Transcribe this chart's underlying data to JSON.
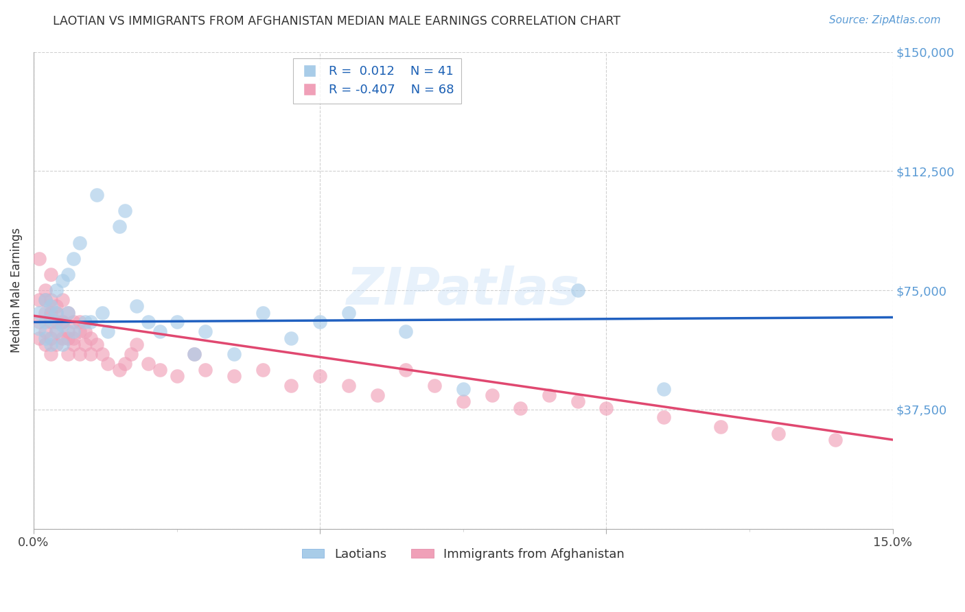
{
  "title": "LAOTIAN VS IMMIGRANTS FROM AFGHANISTAN MEDIAN MALE EARNINGS CORRELATION CHART",
  "source": "Source: ZipAtlas.com",
  "ylabel": "Median Male Earnings",
  "yticks": [
    0,
    37500,
    75000,
    112500,
    150000
  ],
  "ytick_labels": [
    "",
    "$37,500",
    "$75,000",
    "$112,500",
    "$150,000"
  ],
  "xlim": [
    0.0,
    0.15
  ],
  "ylim": [
    0,
    150000
  ],
  "watermark": "ZIPatlas",
  "blue_color": "#a8cce8",
  "pink_color": "#f0a0b8",
  "trend_blue": "#2060c0",
  "trend_pink": "#e04870",
  "label1": "Laotians",
  "label2": "Immigrants from Afghanistan",
  "laotian_x": [
    0.001,
    0.001,
    0.002,
    0.002,
    0.002,
    0.003,
    0.003,
    0.003,
    0.004,
    0.004,
    0.004,
    0.005,
    0.005,
    0.005,
    0.006,
    0.006,
    0.007,
    0.007,
    0.008,
    0.009,
    0.01,
    0.011,
    0.012,
    0.013,
    0.015,
    0.016,
    0.018,
    0.02,
    0.022,
    0.025,
    0.028,
    0.03,
    0.035,
    0.04,
    0.045,
    0.05,
    0.055,
    0.065,
    0.075,
    0.095,
    0.11
  ],
  "laotian_y": [
    63000,
    68000,
    65000,
    60000,
    72000,
    58000,
    66000,
    70000,
    62000,
    75000,
    68000,
    64000,
    78000,
    58000,
    68000,
    80000,
    85000,
    62000,
    90000,
    65000,
    65000,
    105000,
    68000,
    62000,
    95000,
    100000,
    70000,
    65000,
    62000,
    65000,
    55000,
    62000,
    55000,
    68000,
    60000,
    65000,
    68000,
    62000,
    44000,
    75000,
    44000
  ],
  "afghan_x": [
    0.001,
    0.001,
    0.001,
    0.001,
    0.002,
    0.002,
    0.002,
    0.002,
    0.002,
    0.003,
    0.003,
    0.003,
    0.003,
    0.003,
    0.003,
    0.004,
    0.004,
    0.004,
    0.004,
    0.004,
    0.005,
    0.005,
    0.005,
    0.005,
    0.006,
    0.006,
    0.006,
    0.006,
    0.007,
    0.007,
    0.007,
    0.008,
    0.008,
    0.008,
    0.009,
    0.009,
    0.01,
    0.01,
    0.011,
    0.012,
    0.013,
    0.015,
    0.016,
    0.017,
    0.018,
    0.02,
    0.022,
    0.025,
    0.028,
    0.03,
    0.035,
    0.04,
    0.045,
    0.05,
    0.055,
    0.06,
    0.065,
    0.07,
    0.075,
    0.08,
    0.085,
    0.09,
    0.095,
    0.1,
    0.11,
    0.12,
    0.13,
    0.14
  ],
  "afghan_y": [
    85000,
    72000,
    65000,
    60000,
    75000,
    68000,
    62000,
    58000,
    72000,
    80000,
    68000,
    65000,
    60000,
    72000,
    55000,
    70000,
    65000,
    62000,
    68000,
    58000,
    65000,
    72000,
    60000,
    65000,
    62000,
    68000,
    60000,
    55000,
    65000,
    60000,
    58000,
    62000,
    55000,
    65000,
    58000,
    62000,
    55000,
    60000,
    58000,
    55000,
    52000,
    50000,
    52000,
    55000,
    58000,
    52000,
    50000,
    48000,
    55000,
    50000,
    48000,
    50000,
    45000,
    48000,
    45000,
    42000,
    50000,
    45000,
    40000,
    42000,
    38000,
    42000,
    40000,
    38000,
    35000,
    32000,
    30000,
    28000
  ]
}
